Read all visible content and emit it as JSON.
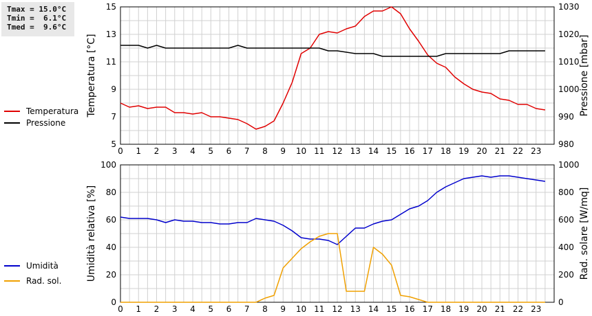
{
  "stats": {
    "tmax": "Tmax = 15.0°C",
    "tmin": "Tmin =  6.1°C",
    "tmed": "Tmed =  9.6°C"
  },
  "colors": {
    "temperatura": "#e00000",
    "pressione": "#000000",
    "umidita": "#0000cc",
    "radsol": "#f0a000",
    "grid": "#d0d0d0"
  },
  "chart_data": [
    {
      "type": "line",
      "x_ticks": [
        "0",
        "1",
        "2",
        "3",
        "4",
        "5",
        "6",
        "7",
        "8",
        "9",
        "10",
        "11",
        "12",
        "13",
        "14",
        "15",
        "16",
        "17",
        "18",
        "19",
        "20",
        "21",
        "22",
        "23"
      ],
      "ylabel_left": "Temperatura [°C]",
      "ylabel_right": "Pressione [mbar]",
      "ylim_left": [
        5,
        15
      ],
      "yticks_left": [
        "5",
        "7",
        "9",
        "11",
        "13",
        "15"
      ],
      "ylim_right": [
        980,
        1030
      ],
      "yticks_right": [
        "980",
        "990",
        "1000",
        "1010",
        "1020",
        "1030"
      ],
      "grid": true,
      "series": [
        {
          "name": "Temperatura",
          "axis": "left",
          "x": [
            0,
            0.5,
            1,
            1.5,
            2,
            2.5,
            3,
            3.5,
            4,
            4.5,
            5,
            5.5,
            6,
            6.5,
            7,
            7.5,
            8,
            8.5,
            9,
            9.5,
            10,
            10.5,
            11,
            11.5,
            12,
            12.5,
            13,
            13.5,
            14,
            14.5,
            15,
            15.5,
            16,
            16.5,
            17,
            17.5,
            18,
            18.5,
            19,
            19.5,
            20,
            20.5,
            21,
            21.5,
            22,
            22.5,
            23,
            23.5
          ],
          "values": [
            8.0,
            7.7,
            7.8,
            7.6,
            7.7,
            7.7,
            7.3,
            7.3,
            7.2,
            7.3,
            7.0,
            7.0,
            6.9,
            6.8,
            6.5,
            6.1,
            6.3,
            6.7,
            8.0,
            9.5,
            11.6,
            12.0,
            13.0,
            13.2,
            13.1,
            13.4,
            13.6,
            14.3,
            14.7,
            14.7,
            15.0,
            14.5,
            13.4,
            12.5,
            11.5,
            10.9,
            10.6,
            9.9,
            9.4,
            9.0,
            8.8,
            8.7,
            8.3,
            8.2,
            7.9,
            7.9,
            7.6,
            7.5
          ]
        },
        {
          "name": "Pressione",
          "axis": "right",
          "x": [
            0,
            1,
            1.5,
            2,
            2.5,
            3,
            4,
            5,
            6,
            6.5,
            7,
            8,
            9,
            10,
            11,
            11.5,
            12,
            13,
            14,
            14.5,
            15,
            16,
            17,
            17.5,
            18,
            19,
            20,
            21,
            21.5,
            22,
            23,
            23.5
          ],
          "values": [
            1016,
            1016,
            1015,
            1016,
            1015,
            1015,
            1015,
            1015,
            1015,
            1016,
            1015,
            1015,
            1015,
            1015,
            1015,
            1014,
            1014,
            1013,
            1013,
            1012,
            1012,
            1012,
            1012,
            1012,
            1013,
            1013,
            1013,
            1013,
            1014,
            1014,
            1014,
            1014
          ]
        }
      ]
    },
    {
      "type": "line",
      "x_ticks": [
        "0",
        "1",
        "2",
        "3",
        "4",
        "5",
        "6",
        "7",
        "8",
        "9",
        "10",
        "11",
        "12",
        "13",
        "14",
        "15",
        "16",
        "17",
        "18",
        "19",
        "20",
        "21",
        "22",
        "23"
      ],
      "ylabel_left": "Umidità relativa [%]",
      "ylabel_right": "Rad. solare [W/mq]",
      "ylim_left": [
        0,
        100
      ],
      "yticks_left": [
        "0",
        "20",
        "40",
        "60",
        "80",
        "100"
      ],
      "ylim_right": [
        0,
        1000
      ],
      "yticks_right": [
        "0",
        "200",
        "400",
        "600",
        "800",
        "1000"
      ],
      "grid": true,
      "series": [
        {
          "name": "Umidità",
          "axis": "left",
          "x": [
            0,
            0.5,
            1,
            1.5,
            2,
            2.5,
            3,
            3.5,
            4,
            4.5,
            5,
            5.5,
            6,
            6.5,
            7,
            7.5,
            8,
            8.5,
            9,
            9.5,
            10,
            10.5,
            11,
            11.5,
            12,
            12.5,
            13,
            13.5,
            14,
            14.5,
            15,
            15.5,
            16,
            16.5,
            17,
            17.5,
            18,
            18.5,
            19,
            19.5,
            20,
            20.5,
            21,
            21.5,
            22,
            22.5,
            23,
            23.5
          ],
          "values": [
            62,
            61,
            61,
            61,
            60,
            58,
            60,
            59,
            59,
            58,
            58,
            57,
            57,
            58,
            58,
            61,
            60,
            59,
            56,
            52,
            47,
            46,
            46,
            45,
            42,
            48,
            54,
            54,
            57,
            59,
            60,
            64,
            68,
            70,
            74,
            80,
            84,
            87,
            90,
            91,
            92,
            91,
            92,
            92,
            91,
            90,
            89,
            88
          ]
        },
        {
          "name": "Rad. sol.",
          "axis": "right",
          "x": [
            0,
            1,
            2,
            3,
            4,
            5,
            6,
            7,
            7.5,
            8,
            8.5,
            9,
            9.5,
            10,
            10.5,
            11,
            11.5,
            12,
            12.5,
            13,
            13.5,
            14,
            14.5,
            15,
            15.5,
            16,
            16.5,
            17,
            18,
            19,
            20,
            21,
            22,
            23,
            23.5
          ],
          "values": [
            0,
            0,
            0,
            0,
            0,
            0,
            0,
            0,
            0,
            30,
            50,
            250,
            320,
            390,
            440,
            480,
            500,
            500,
            80,
            80,
            80,
            400,
            350,
            270,
            50,
            40,
            20,
            0,
            0,
            0,
            0,
            0,
            0,
            0,
            0
          ]
        }
      ]
    }
  ]
}
